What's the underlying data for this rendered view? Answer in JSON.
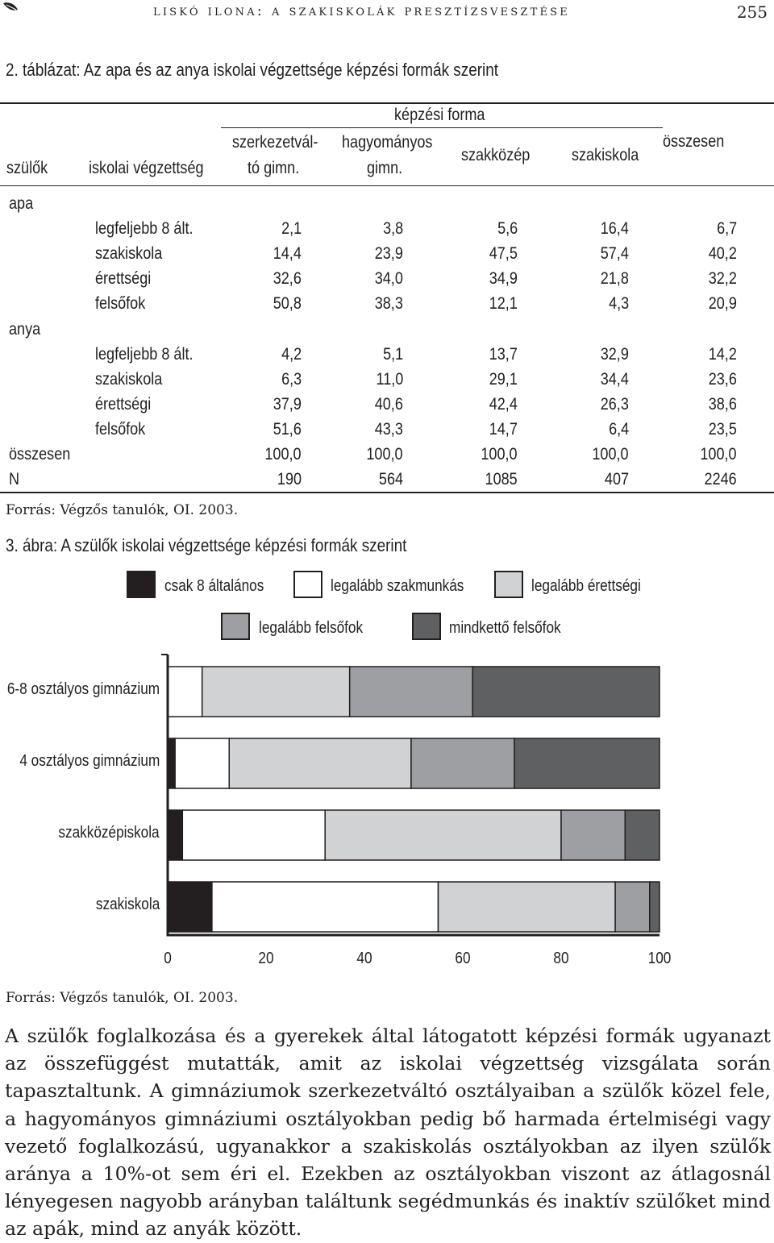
{
  "header": {
    "title": "Liskó Ilona: A szakiskolák presztízsvesztése",
    "page_number": "255"
  },
  "table": {
    "caption": "2. táblázat: Az apa és az anya iskolai végzettsége képzési formák szerint",
    "group_header": "képzési forma",
    "col_szulok": "szülők",
    "col_vegzettseg": "iskolai végzettség",
    "col_szerkezetvalto_1": "szerkezetvál-",
    "col_szerkezetvalto_2": "tó gimn.",
    "col_hagyomanyos_1": "hagyományos",
    "col_hagyomanyos_2": "gimn.",
    "col_szakkozep": "szakközép",
    "col_szakiskola": "szakiskola",
    "col_osszesen": "összesen",
    "group_apa": "apa",
    "group_anya": "anya",
    "rows_apa": [
      {
        "label": "legfeljebb 8 ált.",
        "values": [
          "2,1",
          "3,8",
          "5,6",
          "16,4",
          "6,7"
        ]
      },
      {
        "label": "szakiskola",
        "values": [
          "14,4",
          "23,9",
          "47,5",
          "57,4",
          "40,2"
        ]
      },
      {
        "label": "érettségi",
        "values": [
          "32,6",
          "34,0",
          "34,9",
          "21,8",
          "32,2"
        ]
      },
      {
        "label": "felsőfok",
        "values": [
          "50,8",
          "38,3",
          "12,1",
          "4,3",
          "20,9"
        ]
      }
    ],
    "rows_anya": [
      {
        "label": "legfeljebb 8 ált.",
        "values": [
          "4,2",
          "5,1",
          "13,7",
          "32,9",
          "14,2"
        ]
      },
      {
        "label": "szakiskola",
        "values": [
          "6,3",
          "11,0",
          "29,1",
          "34,4",
          "23,6"
        ]
      },
      {
        "label": "érettségi",
        "values": [
          "37,9",
          "40,6",
          "42,4",
          "26,3",
          "38,6"
        ]
      },
      {
        "label": "felsőfok",
        "values": [
          "51,6",
          "43,3",
          "14,7",
          "6,4",
          "23,5"
        ]
      }
    ],
    "total_row": {
      "label": "összesen",
      "values": [
        "100,0",
        "100,0",
        "100,0",
        "100,0",
        "100,0"
      ]
    },
    "n_row": {
      "label": "N",
      "values": [
        "190",
        "564",
        "1085",
        "407",
        "2246"
      ]
    },
    "source": "Forrás: Végzős tanulók, OI. 2003."
  },
  "figure": {
    "caption": "3. ábra: A szülők iskolai végzettsége képzési formák szerint",
    "source": "Forrás: Végzős tanulók, OI. 2003."
  },
  "chart_data": {
    "type": "bar",
    "orientation": "horizontal",
    "stacked": true,
    "title": "",
    "xlabel": "",
    "ylabel": "",
    "xlim": [
      0,
      100
    ],
    "x_ticks": [
      "0",
      "20",
      "40",
      "60",
      "80",
      "100"
    ],
    "grid": false,
    "legend_position": "top",
    "categories": [
      "6-8 osztályos gimnázium",
      "4 osztályos gimnázium",
      "szakközépiskola",
      "szakiskola"
    ],
    "series": [
      {
        "name": "csak 8 általános",
        "color": "#231f20",
        "values": [
          0,
          1.5,
          3,
          9
        ]
      },
      {
        "name": "legalább szakmunkás",
        "color": "#ffffff",
        "values": [
          7,
          11,
          29,
          46
        ]
      },
      {
        "name": "legalább érettségi",
        "color": "#d1d2d4",
        "values": [
          30,
          37,
          48,
          36
        ]
      },
      {
        "name": "legalább felsőfok",
        "color": "#9d9fa2",
        "values": [
          25,
          21,
          13,
          7
        ]
      },
      {
        "name": "mindkettő felsőfok",
        "color": "#5f6062",
        "values": [
          38,
          29.5,
          7,
          2
        ]
      }
    ]
  },
  "body_text": "A szülők foglalkozása és a gyerekek által látogatott képzési formák ugyanazt az összefüggést mutatták, amit az iskolai végzettség vizsgálata során tapasztaltunk. A gimnáziumok szerkezetváltó osztályaiban a szülők közel fele, a hagyományos gimnáziumi osztályokban pedig bő harmada értelmiségi vagy vezető foglalkozású, ugyanakkor a szakiskolás osztályokban az ilyen szülők aránya a 10%-ot sem éri el. Ezekben az osztályokban viszont az átlagosnál lényegesen nagyobb arányban találtunk segédmunkás és inaktív szülőket mind az apák, mind az anyák között."
}
